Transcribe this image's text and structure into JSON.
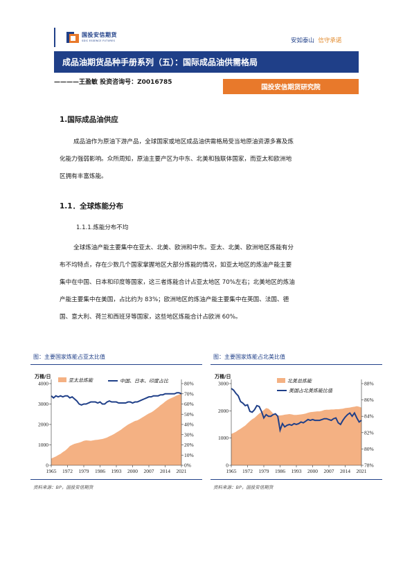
{
  "header": {
    "logo_cn": "国投安信期货",
    "logo_en": "SDIC ESSENCE FUTURES",
    "slogan_a": "安如泰山",
    "slogan_b": "信守承诺",
    "title": "成品油期货品种手册系列（五）：国际成品油供需格局",
    "author": "————王盈敏 投资咨询号：Z0016785",
    "institute": "国投安信期货研究院"
  },
  "section1": {
    "heading": "1.国际成品油供应",
    "para_lines": [
      "成品油作为原油下游产品，全球国家或地区成品油供需格局受当地原油资源多寡及炼",
      "化能力强弱影响。众所周知，原油主要产区为中东、北美和独联体国家，而亚太和欧洲地",
      "区拥有丰富炼能。"
    ]
  },
  "section11": {
    "heading": "1.1．全球炼能分布",
    "subheading": "1.1.1.炼能分布不均",
    "para_lines": [
      "全球炼油产能主要集中在亚太、北美、欧洲和中东。亚太、北美、欧洲地区炼能有分",
      "布不均特点，存在少数几个国家掌握地区大部分炼能的情况，如亚太地区的炼油产能主要",
      "集中在中国、日本和印度等国家，这三者炼能合计占亚太地区 70%左右；北美地区的炼油",
      "产能主要集中在美国，占比约为 83%；欧洲地区的炼油产能主要集中在英国、法国、德",
      "国、意大利、荷兰和西班牙等国家，这些地区炼能合计占欧洲 60%。"
    ]
  },
  "figures": [
    {
      "caption": "图：主要国家炼能占亚太比值",
      "source": "资料来源：BP，国投安信期货"
    },
    {
      "caption": "图：主要国家炼能占北美比值",
      "source": "资料来源：BP，国投安信期货"
    }
  ],
  "colors": {
    "brand_blue": "#1f3f88",
    "orange": "#e8792b",
    "area": "#f4b183",
    "line": "#1f3f88"
  },
  "chart_data": [
    {
      "type": "area",
      "unit_label": "万桶/日",
      "x": [
        1965,
        1966,
        1967,
        1968,
        1969,
        1970,
        1971,
        1972,
        1973,
        1974,
        1975,
        1976,
        1977,
        1978,
        1979,
        1980,
        1981,
        1982,
        1983,
        1984,
        1985,
        1986,
        1987,
        1988,
        1989,
        1990,
        1991,
        1992,
        1993,
        1994,
        1995,
        1996,
        1997,
        1998,
        1999,
        2000,
        2001,
        2002,
        2003,
        2004,
        2005,
        2006,
        2007,
        2008,
        2009,
        2010,
        2011,
        2012,
        2013,
        2014,
        2015,
        2016,
        2017,
        2018,
        2019,
        2020,
        2021
      ],
      "x_ticks": [
        "1965",
        "1972",
        "1979",
        "1986",
        "1993",
        "2000",
        "2007",
        "2014",
        "2021"
      ],
      "y_left_lim": [
        0,
        4000
      ],
      "y_left_ticks": [
        "0",
        "1000",
        "2000",
        "3000",
        "4000"
      ],
      "y_right_lim": [
        0,
        80
      ],
      "y_right_ticks": [
        "0%",
        "10%",
        "20%",
        "30%",
        "40%",
        "50%",
        "60%",
        "70%",
        "80%"
      ],
      "series": [
        {
          "name": "亚太总炼能",
          "axis": "left",
          "kind": "area",
          "values": [
            330,
            380,
            430,
            500,
            560,
            650,
            720,
            820,
            940,
            1000,
            1050,
            1080,
            1110,
            1150,
            1200,
            1220,
            1210,
            1200,
            1220,
            1240,
            1250,
            1270,
            1290,
            1320,
            1360,
            1420,
            1470,
            1530,
            1600,
            1670,
            1740,
            1830,
            1910,
            1990,
            2050,
            2110,
            2170,
            2200,
            2260,
            2330,
            2400,
            2470,
            2540,
            2590,
            2660,
            2750,
            2840,
            2940,
            3020,
            3120,
            3200,
            3260,
            3310,
            3360,
            3420,
            3460,
            3530
          ]
        },
        {
          "name": "中国、日本、印度占比",
          "axis": "right",
          "kind": "line",
          "values": [
            68,
            66,
            68,
            67,
            68,
            67,
            68,
            68,
            66,
            67,
            65,
            63,
            60,
            59,
            60,
            60,
            61,
            62,
            62,
            62,
            61,
            62,
            60,
            60,
            62,
            63,
            62,
            62,
            62,
            61,
            61,
            61,
            61,
            62,
            62,
            61,
            62,
            62,
            63,
            64,
            65,
            66,
            67,
            67,
            68,
            68,
            68,
            69,
            69,
            70,
            70,
            70,
            70,
            70,
            71,
            71,
            70
          ]
        }
      ]
    },
    {
      "type": "area",
      "unit_label": "万桶/日",
      "x": [
        1965,
        1966,
        1967,
        1968,
        1969,
        1970,
        1971,
        1972,
        1973,
        1974,
        1975,
        1976,
        1977,
        1978,
        1979,
        1980,
        1981,
        1982,
        1983,
        1984,
        1985,
        1986,
        1987,
        1988,
        1989,
        1990,
        1991,
        1992,
        1993,
        1994,
        1995,
        1996,
        1997,
        1998,
        1999,
        2000,
        2001,
        2002,
        2003,
        2004,
        2005,
        2006,
        2007,
        2008,
        2009,
        2010,
        2011,
        2012,
        2013,
        2014,
        2015,
        2016,
        2017,
        2018,
        2019,
        2020,
        2021
      ],
      "x_ticks": [
        "1965",
        "1972",
        "1979",
        "1986",
        "1993",
        "2000",
        "2007",
        "2014",
        "2021"
      ],
      "y_left_lim": [
        0,
        3000
      ],
      "y_left_ticks": [
        "0",
        "1000",
        "2000",
        "3000"
      ],
      "y_right_lim": [
        78,
        88
      ],
      "y_right_ticks": [
        "78%",
        "80%",
        "82%",
        "84%",
        "86%",
        "88%"
      ],
      "series": [
        {
          "name": "北美总炼能",
          "axis": "left",
          "kind": "area",
          "values": [
            1150,
            1190,
            1230,
            1290,
            1340,
            1400,
            1460,
            1540,
            1620,
            1690,
            1740,
            1820,
            1900,
            1960,
            2030,
            2100,
            2080,
            2000,
            1900,
            1850,
            1830,
            1830,
            1840,
            1860,
            1870,
            1880,
            1870,
            1850,
            1850,
            1860,
            1870,
            1880,
            1900,
            1930,
            1950,
            1960,
            1970,
            1980,
            1980,
            2000,
            2030,
            2040,
            2040,
            2050,
            2050,
            2060,
            2060,
            2070,
            2080,
            2100,
            2110,
            2120,
            2140,
            2150,
            2170,
            2150,
            2120
          ]
        },
        {
          "name": "美国占北美炼能比值",
          "axis": "right",
          "kind": "line",
          "values": [
            87.4,
            87.2,
            86.8,
            86.5,
            85.8,
            85.6,
            85.3,
            85.4,
            84.6,
            84.5,
            84.8,
            85.3,
            85.2,
            84.6,
            83.8,
            84.2,
            84.0,
            84.0,
            84.2,
            84.3,
            84.0,
            82.3,
            83.1,
            82.7,
            82.9,
            83.0,
            82.9,
            83.1,
            83.0,
            83.1,
            83.3,
            83.2,
            83.4,
            83.6,
            83.5,
            83.6,
            83.5,
            83.5,
            83.5,
            83.6,
            83.7,
            83.7,
            83.6,
            83.5,
            83.7,
            83.8,
            83.2,
            83.0,
            83.5,
            83.9,
            84.2,
            84.4,
            84.0,
            84.4,
            83.8,
            83.3,
            83.5
          ]
        }
      ]
    }
  ]
}
